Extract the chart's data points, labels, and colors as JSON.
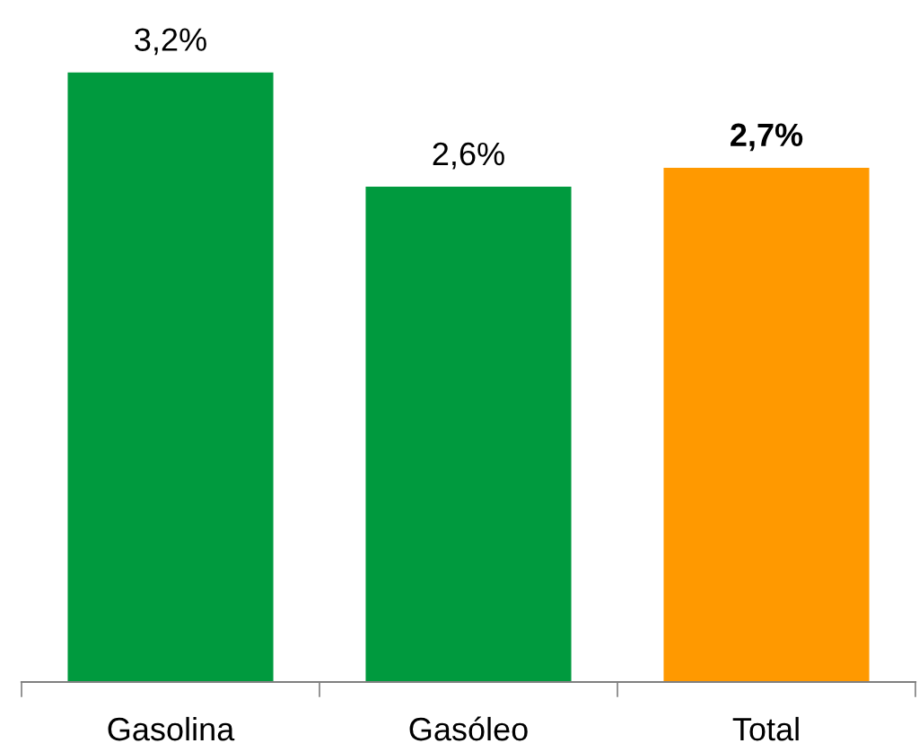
{
  "chart_data": {
    "type": "bar",
    "categories": [
      "Gasolina",
      "Gasóleo",
      "Total"
    ],
    "values": [
      3.2,
      2.6,
      2.7
    ],
    "colors": [
      "#009a3e",
      "#009a3e",
      "#ff9900"
    ],
    "value_labels": [
      "3,2%",
      "2,6%",
      "2,7%"
    ],
    "grid": false,
    "legend": false,
    "tick_labels": "x"
  }
}
